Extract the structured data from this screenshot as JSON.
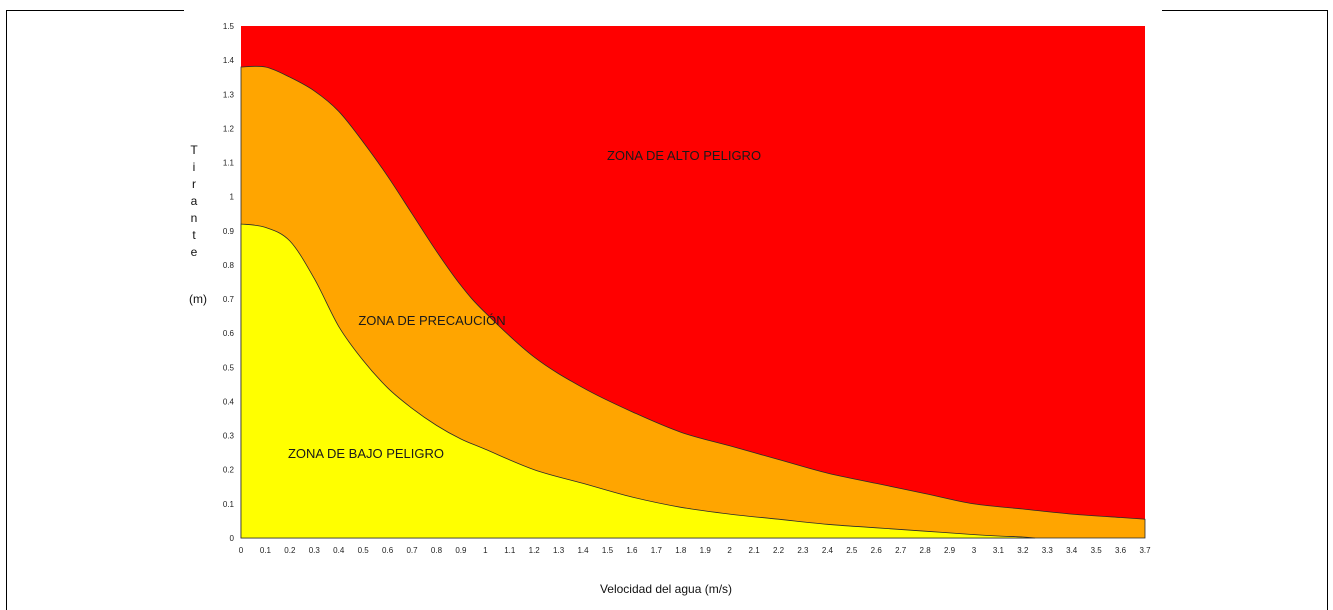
{
  "chart_data": {
    "type": "area",
    "xlabel": "Velocidad del agua (m/s)",
    "ylabel_letters": [
      "T",
      "i",
      "r",
      "a",
      "n",
      "t",
      "e"
    ],
    "ylabel_unit": "(m)",
    "xlim": [
      0,
      3.7
    ],
    "ylim": [
      0,
      1.5
    ],
    "x_ticks": [
      0,
      0.1,
      0.2,
      0.3,
      0.4,
      0.5,
      0.6,
      0.7,
      0.8,
      0.9,
      1,
      1.1,
      1.2,
      1.3,
      1.4,
      1.5,
      1.6,
      1.7,
      1.8,
      1.9,
      2,
      2.1,
      2.2,
      2.3,
      2.4,
      2.5,
      2.6,
      2.7,
      2.8,
      2.9,
      3,
      3.1,
      3.2,
      3.3,
      3.4,
      3.5,
      3.6,
      3.7
    ],
    "y_ticks": [
      0,
      0.1,
      0.2,
      0.3,
      0.4,
      0.5,
      0.6,
      0.7,
      0.8,
      0.9,
      1,
      1.1,
      1.2,
      1.3,
      1.4,
      1.5
    ],
    "grid": false,
    "series": [
      {
        "name": "ZONA DE ALTO PELIGRO",
        "color": "#ff0000",
        "x": [
          0,
          3.7
        ],
        "y": [
          1.5,
          1.5
        ]
      },
      {
        "name": "ZONA DE PRECAUCIÓN",
        "color": "#ffa500",
        "x": [
          0,
          0.1,
          0.2,
          0.3,
          0.4,
          0.5,
          0.6,
          0.7,
          0.8,
          0.9,
          1.0,
          1.2,
          1.4,
          1.6,
          1.8,
          2.0,
          2.2,
          2.4,
          2.6,
          2.8,
          3.0,
          3.2,
          3.4,
          3.6,
          3.7
        ],
        "y": [
          1.38,
          1.38,
          1.35,
          1.31,
          1.25,
          1.16,
          1.06,
          0.95,
          0.84,
          0.74,
          0.66,
          0.53,
          0.44,
          0.37,
          0.31,
          0.27,
          0.23,
          0.19,
          0.16,
          0.13,
          0.1,
          0.085,
          0.07,
          0.06,
          0.055
        ]
      },
      {
        "name": "ZONA DE BAJO PELIGRO",
        "color": "#ffff00",
        "x": [
          0,
          0.1,
          0.2,
          0.3,
          0.4,
          0.5,
          0.6,
          0.7,
          0.8,
          0.9,
          1.0,
          1.2,
          1.4,
          1.6,
          1.8,
          2.0,
          2.2,
          2.4,
          2.6,
          2.8,
          3.0,
          3.1,
          3.2,
          3.25
        ],
        "y": [
          0.92,
          0.91,
          0.87,
          0.76,
          0.62,
          0.52,
          0.44,
          0.38,
          0.33,
          0.29,
          0.26,
          0.2,
          0.16,
          0.12,
          0.09,
          0.07,
          0.055,
          0.04,
          0.03,
          0.02,
          0.01,
          0.006,
          0.003,
          0.0
        ]
      }
    ],
    "labels": {
      "high": "ZONA DE ALTO PELIGRO",
      "caution": "ZONA DE PRECAUCIÓN",
      "low": "ZONA DE BAJO PELIGRO"
    }
  }
}
